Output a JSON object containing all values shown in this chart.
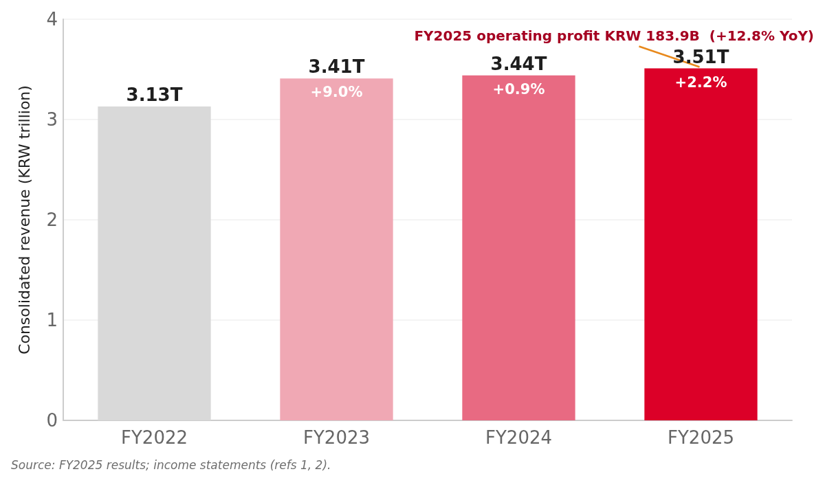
{
  "chart_data": {
    "type": "bar",
    "ylabel": "Consolidated revenue (KRW trillion)",
    "categories": [
      "FY2022",
      "FY2023",
      "FY2024",
      "FY2025"
    ],
    "values": [
      3.13,
      3.41,
      3.44,
      3.51
    ],
    "colors": [
      "#d9d9d9",
      "#f0a8b4",
      "#e86a82",
      "#dc0028"
    ],
    "value_labels": [
      "3.13T",
      "3.41T",
      "3.44T",
      "3.51T"
    ],
    "ylim": [
      0,
      4
    ],
    "yticks": [
      0,
      1,
      2,
      3,
      4
    ],
    "grid": "y",
    "annotations": [
      {
        "text": "FY2025 operating profit KRW 183.9B  (+12.8% YoY)",
        "x": "FY2025",
        "y": 3.51
      },
      "+9.0%",
      "+0.9%",
      "+2.2%",
      "Source: FY2025 results; income statements (refs 1, 2)."
    ]
  }
}
